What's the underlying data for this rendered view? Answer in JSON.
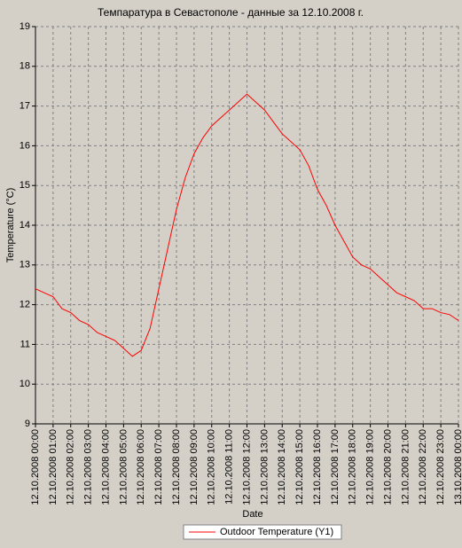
{
  "chart_data": {
    "type": "line",
    "title": "Темпаратура в Севастополе - данные за 12.10.2008 г.",
    "x_label": "Date",
    "y_label": "Temperature (°C)",
    "x": [
      "12.10.2008 00:00",
      "12.10.2008 00:30",
      "12.10.2008 01:00",
      "12.10.2008 01:30",
      "12.10.2008 02:00",
      "12.10.2008 02:30",
      "12.10.2008 03:00",
      "12.10.2008 03:30",
      "12.10.2008 04:00",
      "12.10.2008 04:30",
      "12.10.2008 05:00",
      "12.10.2008 05:30",
      "12.10.2008 06:00",
      "12.10.2008 06:30",
      "12.10.2008 07:00",
      "12.10.2008 07:30",
      "12.10.2008 08:00",
      "12.10.2008 08:30",
      "12.10.2008 09:00",
      "12.10.2008 09:30",
      "12.10.2008 10:00",
      "12.10.2008 10:30",
      "12.10.2008 11:00",
      "12.10.2008 11:30",
      "12.10.2008 12:00",
      "12.10.2008 12:30",
      "12.10.2008 13:00",
      "12.10.2008 13:30",
      "12.10.2008 14:00",
      "12.10.2008 14:30",
      "12.10.2008 15:00",
      "12.10.2008 15:30",
      "12.10.2008 16:00",
      "12.10.2008 16:30",
      "12.10.2008 17:00",
      "12.10.2008 17:30",
      "12.10.2008 18:00",
      "12.10.2008 18:30",
      "12.10.2008 19:00",
      "12.10.2008 19:30",
      "12.10.2008 20:00",
      "12.10.2008 20:30",
      "12.10.2008 21:00",
      "12.10.2008 21:30",
      "12.10.2008 22:00",
      "12.10.2008 22:30",
      "12.10.2008 23:00",
      "12.10.2008 23:30",
      "13.10.2008 00:00"
    ],
    "series": [
      {
        "name": "Outdoor Temperature (Y1)",
        "color": "#ff0000",
        "values": [
          12.4,
          12.3,
          12.2,
          11.9,
          11.8,
          11.6,
          11.5,
          11.3,
          11.2,
          11.1,
          10.9,
          10.7,
          10.85,
          11.4,
          12.4,
          13.4,
          14.4,
          15.2,
          15.8,
          16.2,
          16.5,
          16.7,
          16.9,
          17.1,
          17.3,
          17.1,
          16.9,
          16.6,
          16.3,
          16.1,
          15.9,
          15.5,
          14.9,
          14.5,
          14.0,
          13.6,
          13.2,
          13.0,
          12.9,
          12.7,
          12.5,
          12.3,
          12.2,
          12.1,
          11.9,
          11.9,
          11.8,
          11.75,
          11.6
        ]
      }
    ],
    "xlim": [
      "12.10.2008 00:00",
      "13.10.2008 00:00"
    ],
    "xticks": [
      "12.10.2008 00:00",
      "12.10.2008 01:00",
      "12.10.2008 02:00",
      "12.10.2008 03:00",
      "12.10.2008 04:00",
      "12.10.2008 05:00",
      "12.10.2008 06:00",
      "12.10.2008 07:00",
      "12.10.2008 08:00",
      "12.10.2008 09:00",
      "12.10.2008 10:00",
      "12.10.2008 11:00",
      "12.10.2008 12:00",
      "12.10.2008 13:00",
      "12.10.2008 14:00",
      "12.10.2008 15:00",
      "12.10.2008 16:00",
      "12.10.2008 17:00",
      "12.10.2008 18:00",
      "12.10.2008 19:00",
      "12.10.2008 20:00",
      "12.10.2008 21:00",
      "12.10.2008 22:00",
      "12.10.2008 23:00",
      "13.10.2008 00:00"
    ],
    "ylim": [
      9,
      19
    ],
    "yticks": [
      9,
      10,
      11,
      12,
      13,
      14,
      15,
      16,
      17,
      18,
      19
    ],
    "grid": true
  }
}
